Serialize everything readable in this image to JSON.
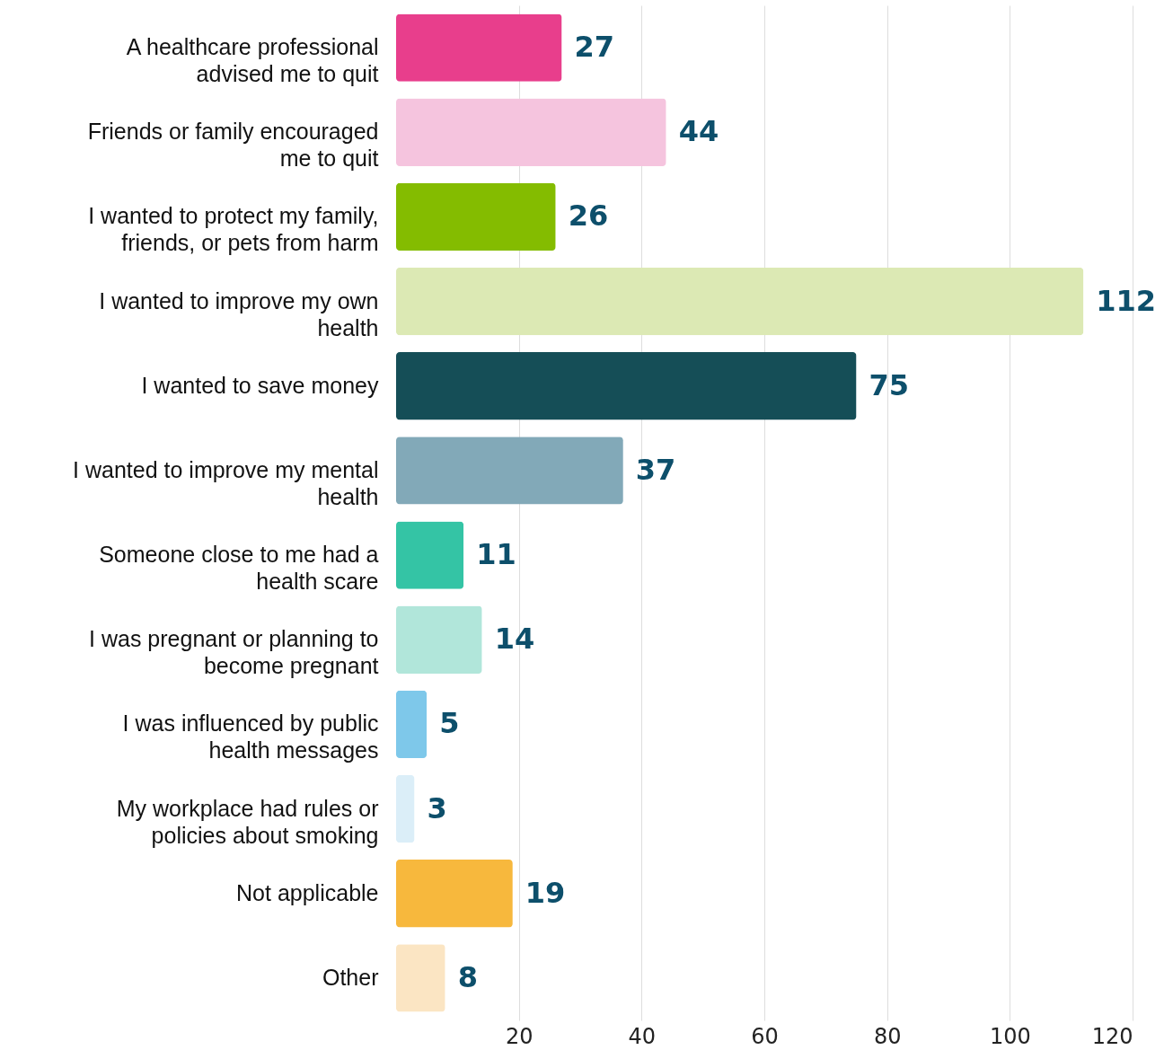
{
  "chart_data": {
    "type": "bar",
    "orientation": "horizontal",
    "categories": [
      "A healthcare professional advised me to quit",
      "Friends or family encouraged me to quit",
      "I wanted to protect my family, friends, or pets from harm",
      "I wanted to improve my own health",
      "I wanted to save money",
      "I wanted to improve my mental health",
      "Someone close to me had a health scare",
      "I was pregnant or planning to become pregnant",
      "I was influenced by public health messages",
      "My workplace had rules or policies about smoking",
      "Not applicable",
      "Other"
    ],
    "values": [
      27,
      44,
      26,
      112,
      75,
      37,
      11,
      14,
      5,
      3,
      19,
      8
    ],
    "colors": [
      "#e83e8c",
      "#f5c4de",
      "#84bc00",
      "#dce9b4",
      "#154e57",
      "#82a9b8",
      "#34c4a5",
      "#b1e6da",
      "#7ec8ea",
      "#dbeef8",
      "#f7b83d",
      "#fbe5c3"
    ],
    "xlim": [
      0,
      120
    ],
    "xticks": [
      20,
      40,
      60,
      80,
      100,
      120
    ],
    "grid": "x",
    "data_labels": true
  }
}
